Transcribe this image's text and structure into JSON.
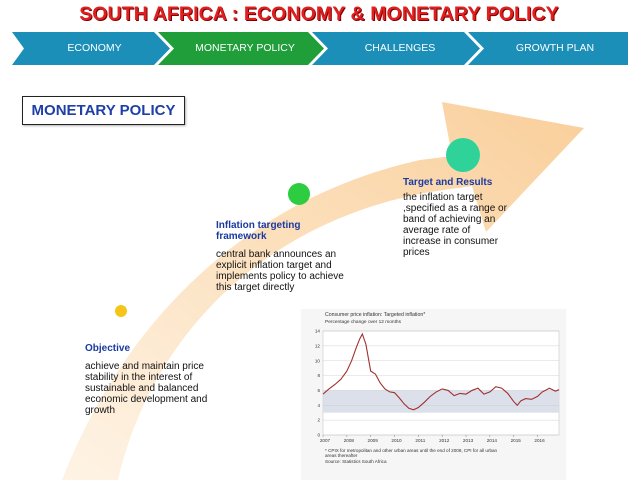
{
  "title": "SOUTH AFRICA : ECONOMY & MONETARY POLICY",
  "nav": {
    "tabs": [
      {
        "label": "ECONOMY",
        "color": "#1c8fb8"
      },
      {
        "label": "MONETARY POLICY",
        "color": "#1f9e3a",
        "active": true
      },
      {
        "label": "CHALLENGES",
        "color": "#1c8fb8"
      },
      {
        "label": "GROWTH PLAN",
        "color": "#1c8fb8"
      }
    ]
  },
  "section_label": "MONETARY POLICY",
  "steps": [
    {
      "heading": "Objective",
      "lines": [
        "achieve and maintain price",
        "stability in the interest of",
        "sustainable and balanced",
        "economic development and",
        "growth"
      ],
      "dot_color": "#f5c518"
    },
    {
      "heading_lines": [
        "Inflation targeting",
        "framework"
      ],
      "lines": [
        "central bank announces an",
        "explicit inflation target and",
        "implements policy to achieve",
        "this target directly"
      ],
      "dot_color": "#2ecc40"
    },
    {
      "heading": "Target and Results",
      "lines": [
        "the inflation target",
        ",specified as a range or",
        "band of achieving an",
        "average rate of",
        "increase in consumer",
        "prices"
      ],
      "dot_color": "#2fd39a"
    }
  ],
  "chart_data": {
    "type": "line",
    "title": "Consumer price inflation: Targeted inflation*",
    "subtitle": "Percentage change over 12 months",
    "x_ticks": [
      "2007",
      "2008",
      "2009",
      "2010",
      "2011",
      "2012",
      "2013",
      "2014",
      "2015",
      "2016"
    ],
    "y_ticks": [
      "0",
      "2",
      "4",
      "6",
      "8",
      "10",
      "12",
      "14"
    ],
    "ylim": [
      0,
      14
    ],
    "xlim": [
      2007,
      2016.9
    ],
    "target_band": [
      3,
      6
    ],
    "series": [
      {
        "color": "#a03030",
        "points": [
          [
            2007.0,
            5.5
          ],
          [
            2007.25,
            6.2
          ],
          [
            2007.5,
            6.8
          ],
          [
            2007.75,
            7.5
          ],
          [
            2008.0,
            8.6
          ],
          [
            2008.2,
            10.0
          ],
          [
            2008.4,
            11.8
          ],
          [
            2008.55,
            13.0
          ],
          [
            2008.65,
            13.6
          ],
          [
            2008.8,
            12.2
          ],
          [
            2009.0,
            8.6
          ],
          [
            2009.2,
            8.2
          ],
          [
            2009.4,
            7.0
          ],
          [
            2009.6,
            6.2
          ],
          [
            2009.8,
            5.8
          ],
          [
            2010.0,
            5.7
          ],
          [
            2010.2,
            5.0
          ],
          [
            2010.4,
            4.2
          ],
          [
            2010.6,
            3.6
          ],
          [
            2010.8,
            3.4
          ],
          [
            2011.0,
            3.7
          ],
          [
            2011.25,
            4.4
          ],
          [
            2011.5,
            5.2
          ],
          [
            2011.75,
            5.8
          ],
          [
            2012.0,
            6.2
          ],
          [
            2012.25,
            6.0
          ],
          [
            2012.5,
            5.3
          ],
          [
            2012.75,
            5.6
          ],
          [
            2013.0,
            5.5
          ],
          [
            2013.25,
            6.0
          ],
          [
            2013.5,
            6.3
          ],
          [
            2013.75,
            5.5
          ],
          [
            2014.0,
            5.8
          ],
          [
            2014.25,
            6.5
          ],
          [
            2014.5,
            6.3
          ],
          [
            2014.75,
            5.6
          ],
          [
            2015.0,
            4.5
          ],
          [
            2015.15,
            4.0
          ],
          [
            2015.3,
            4.6
          ],
          [
            2015.5,
            4.9
          ],
          [
            2015.75,
            4.8
          ],
          [
            2016.0,
            5.2
          ],
          [
            2016.2,
            5.8
          ],
          [
            2016.5,
            6.3
          ],
          [
            2016.75,
            5.9
          ],
          [
            2016.9,
            6.1
          ]
        ]
      }
    ],
    "footnote_lines": [
      "* CPIX for metropolitan and other urban areas until the end of 2008, CPI for all urban",
      "areas thereafter",
      "Source: Statistics South Africa"
    ]
  }
}
